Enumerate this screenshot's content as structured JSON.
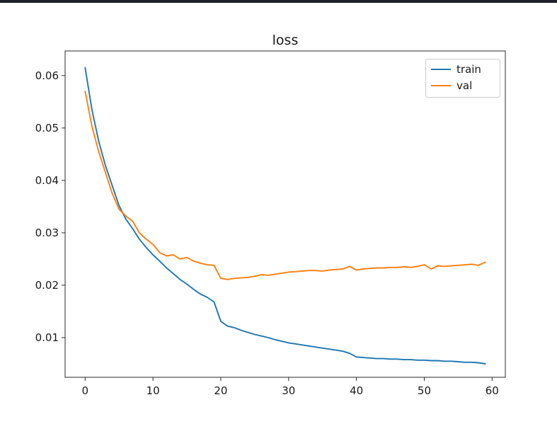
{
  "window": {
    "topbar_color": "#1e2127",
    "background_color": "#ffffff"
  },
  "chart_data": {
    "type": "line",
    "title": "loss",
    "xlabel": "",
    "ylabel": "",
    "grid": false,
    "legend_position": "upper right",
    "legend_entries": [
      "train",
      "val"
    ],
    "x_ticks": [
      0,
      10,
      20,
      30,
      40,
      50,
      60
    ],
    "y_ticks": [
      0.01,
      0.02,
      0.03,
      0.04,
      0.05,
      0.06
    ],
    "xlim": [
      -2.95,
      61.95
    ],
    "ylim": [
      0.00243,
      0.0647
    ],
    "x": [
      0,
      1,
      2,
      3,
      4,
      5,
      6,
      7,
      8,
      9,
      10,
      11,
      12,
      13,
      14,
      15,
      16,
      17,
      18,
      19,
      20,
      21,
      22,
      23,
      24,
      25,
      26,
      27,
      28,
      29,
      30,
      31,
      32,
      33,
      34,
      35,
      36,
      37,
      38,
      39,
      40,
      41,
      42,
      43,
      44,
      45,
      46,
      47,
      48,
      49,
      50,
      51,
      52,
      53,
      54,
      55,
      56,
      57,
      58,
      59
    ],
    "series": [
      {
        "name": "train",
        "color": "#1f77b4",
        "values": [
          0.0615,
          0.0535,
          0.0475,
          0.0428,
          0.039,
          0.0352,
          0.0326,
          0.0308,
          0.0288,
          0.0272,
          0.0258,
          0.0246,
          0.0233,
          0.0222,
          0.0211,
          0.0202,
          0.0192,
          0.0183,
          0.0177,
          0.0168,
          0.0131,
          0.0122,
          0.0119,
          0.0114,
          0.011,
          0.0106,
          0.0103,
          0.01,
          0.0096,
          0.0093,
          0.009,
          0.0088,
          0.0086,
          0.0084,
          0.0082,
          0.008,
          0.0078,
          0.0076,
          0.0074,
          0.007,
          0.0063,
          0.0062,
          0.0061,
          0.006,
          0.006,
          0.0059,
          0.0059,
          0.0058,
          0.0058,
          0.0057,
          0.0057,
          0.0056,
          0.0056,
          0.0055,
          0.0055,
          0.0054,
          0.0053,
          0.0053,
          0.0052,
          0.005
        ]
      },
      {
        "name": "val",
        "color": "#ff7f0e",
        "values": [
          0.057,
          0.0503,
          0.0455,
          0.0415,
          0.0375,
          0.0345,
          0.0332,
          0.0322,
          0.03,
          0.0288,
          0.0278,
          0.0262,
          0.0256,
          0.0258,
          0.025,
          0.0253,
          0.0246,
          0.0242,
          0.0239,
          0.0238,
          0.0213,
          0.0211,
          0.0213,
          0.0214,
          0.0215,
          0.0217,
          0.022,
          0.0219,
          0.0221,
          0.0223,
          0.0225,
          0.0226,
          0.0227,
          0.0228,
          0.0228,
          0.0227,
          0.0229,
          0.023,
          0.0231,
          0.0236,
          0.0229,
          0.0231,
          0.0232,
          0.0233,
          0.0233,
          0.0234,
          0.0234,
          0.0235,
          0.0234,
          0.0236,
          0.0239,
          0.0231,
          0.0237,
          0.0236,
          0.0237,
          0.0238,
          0.0239,
          0.024,
          0.0238,
          0.0244
        ]
      }
    ]
  },
  "colors": {
    "spine": "#2a2a2a",
    "tick_label": "#1a1a1a",
    "legend_border": "#cccccc",
    "legend_background": "#ffffff"
  }
}
